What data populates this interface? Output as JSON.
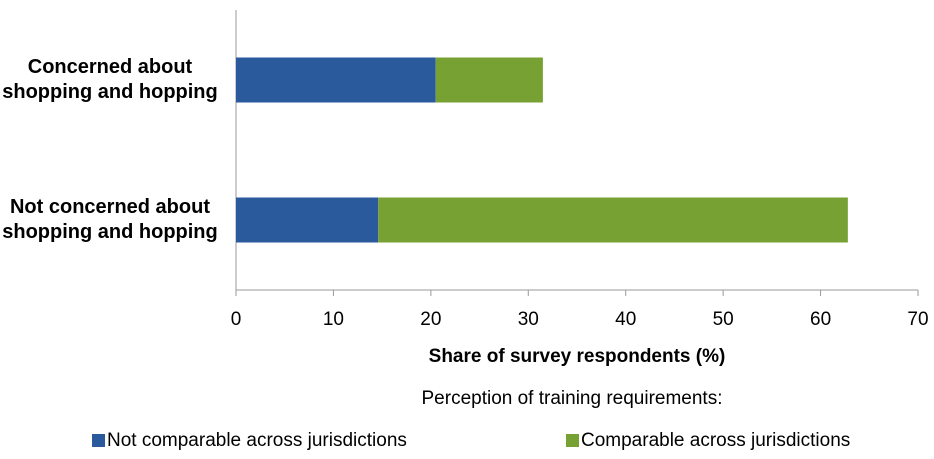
{
  "chart_data": {
    "type": "stacked_bar_horizontal",
    "categories": [
      "Concerned about shopping and hopping",
      "Not concerned about shopping and hopping"
    ],
    "series": [
      {
        "name": "Not comparable across jurisdictions",
        "color": "#2a5a9b",
        "values": [
          20.5,
          14.6
        ]
      },
      {
        "name": "Comparable across jurisdictions",
        "color": "#77a233",
        "values": [
          11.0,
          48.2
        ]
      }
    ],
    "xlabel": "Share of survey respondents (%)",
    "legend_title": "Perception of training requirements:",
    "xlim": [
      0,
      70
    ],
    "xticks": [
      0,
      10,
      20,
      30,
      40,
      50,
      60,
      70
    ],
    "legend": "bottom"
  }
}
